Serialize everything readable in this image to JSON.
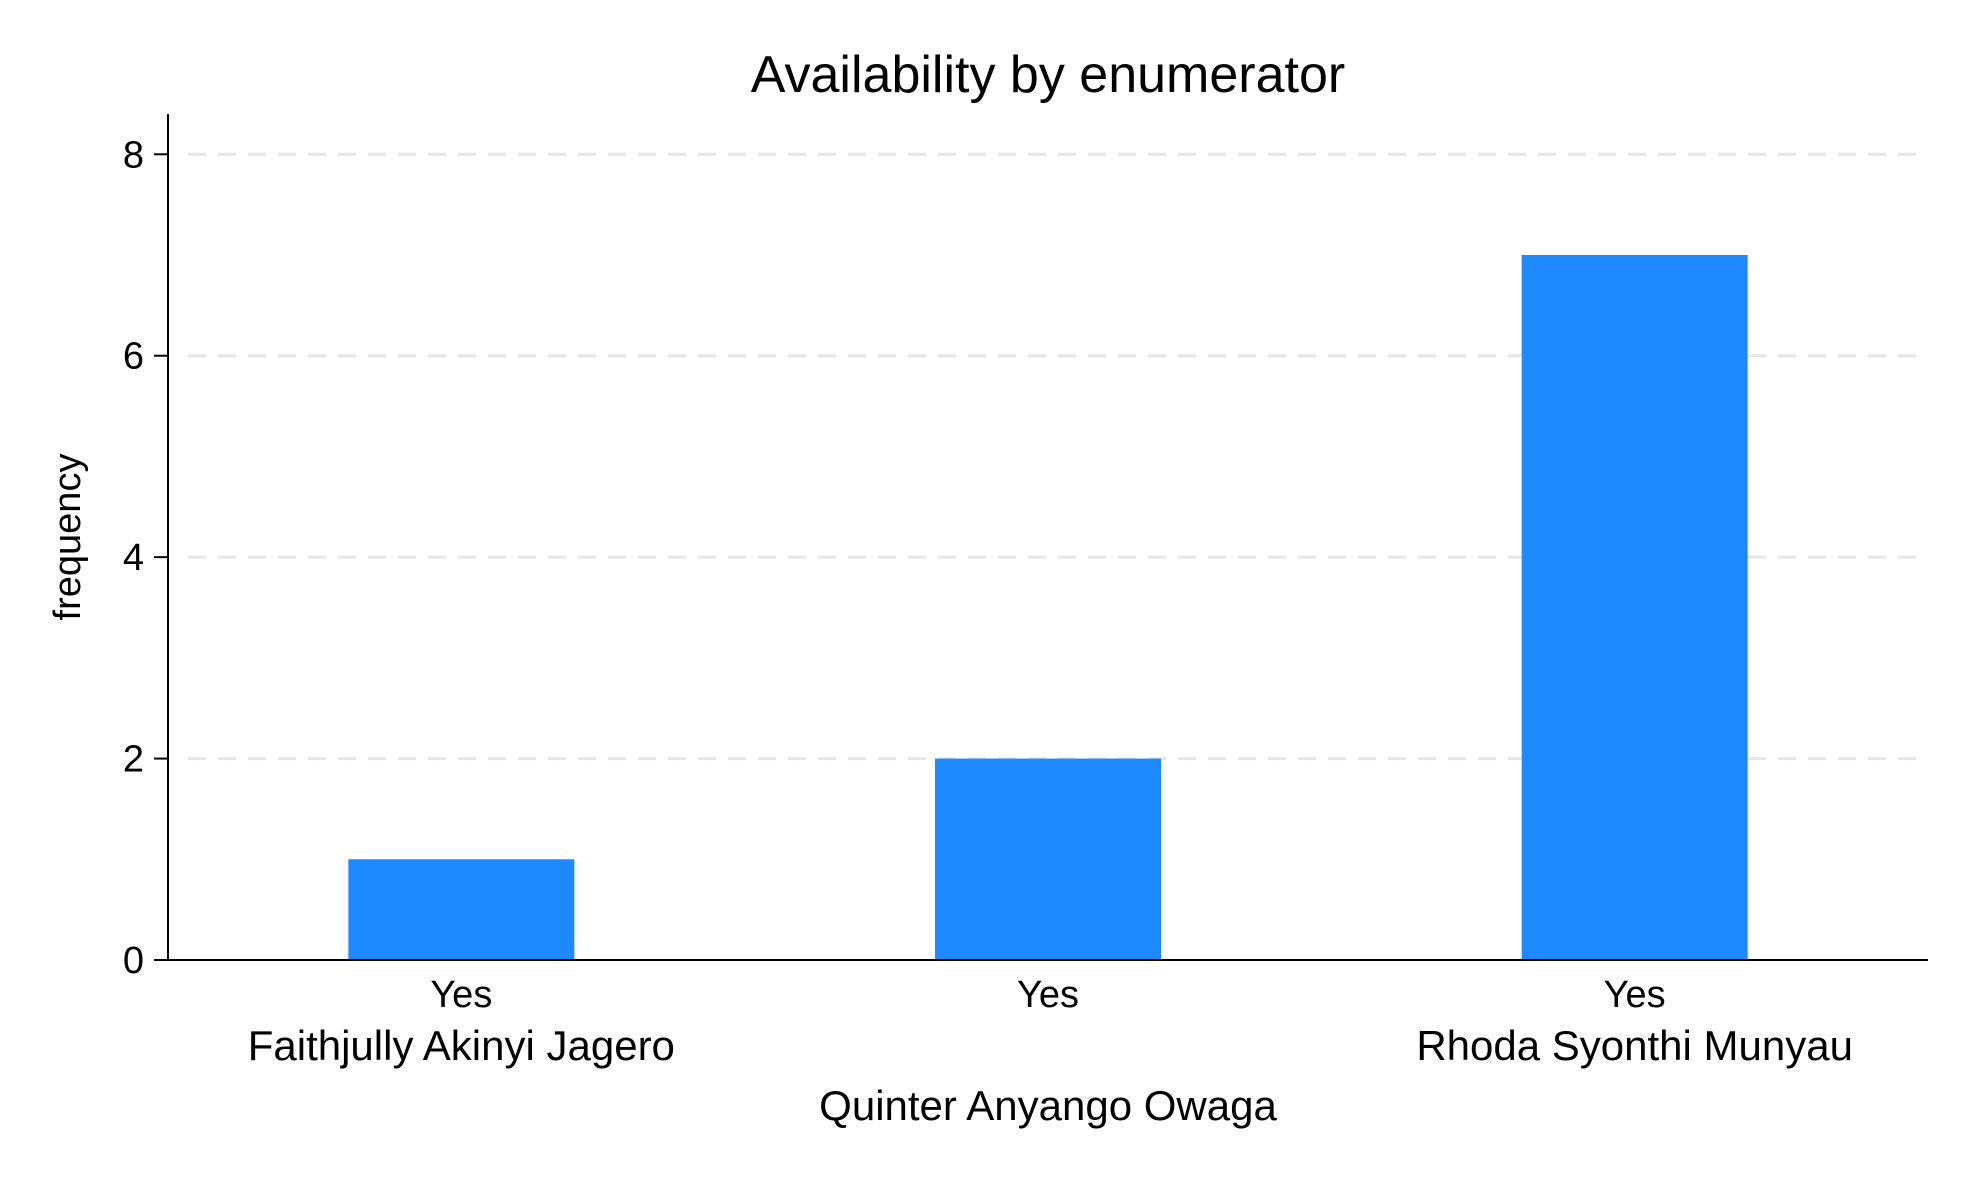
{
  "chart_data": {
    "type": "bar",
    "title": "Availability by enumerator",
    "xlabel": "",
    "ylabel": "frequency",
    "ylim": [
      0,
      8.4
    ],
    "yticks": [
      0,
      2,
      4,
      6,
      8
    ],
    "grid": true,
    "categories": [
      "Faithjully Akinyi Jagero",
      "Quinter Anyango Owaga",
      "Rhoda Syonthi Munyau"
    ],
    "sub_labels": [
      "Yes",
      "Yes",
      "Yes"
    ],
    "values": [
      1,
      2,
      7
    ],
    "bar_color": "#1e88ff"
  }
}
